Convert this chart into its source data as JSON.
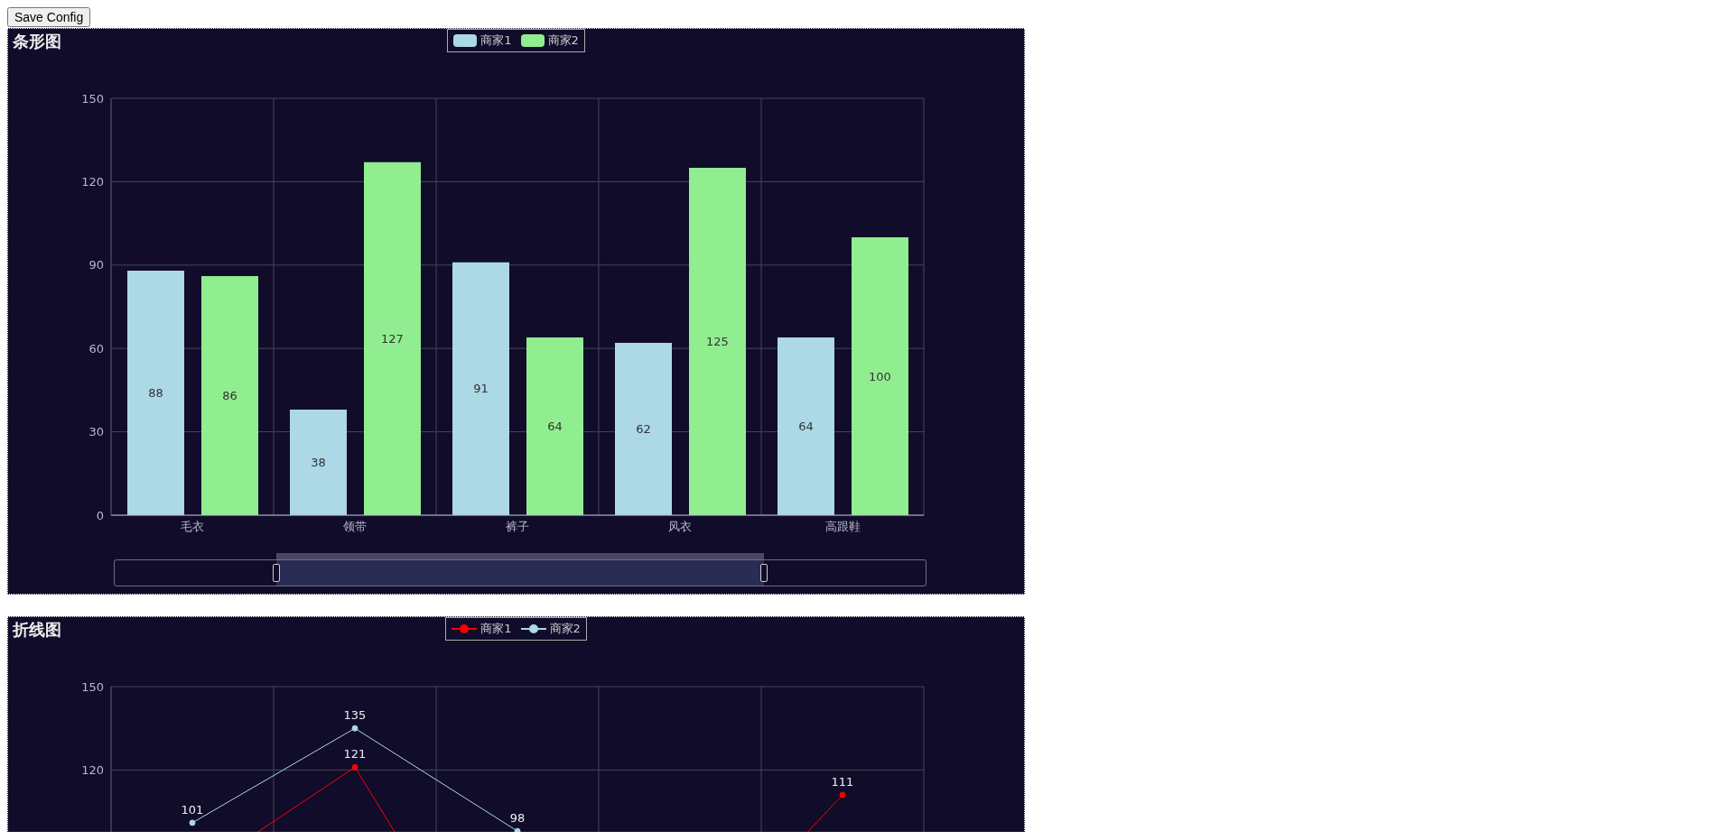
{
  "chart_data": [
    {
      "type": "bar",
      "title": "条形图",
      "annotations": [
        "Save Config"
      ],
      "categories": [
        "毛衣",
        "领带",
        "裤子",
        "风衣",
        "高跟鞋"
      ],
      "series": [
        {
          "name": "商家1",
          "color": "#add8e6",
          "values": [
            88,
            38,
            91,
            62,
            64
          ]
        },
        {
          "name": "商家2",
          "color": "#90ee90",
          "values": [
            86,
            127,
            64,
            125,
            100
          ]
        }
      ],
      "ylim": [
        0,
        150
      ],
      "yticks": [
        0,
        30,
        60,
        90,
        120,
        150
      ],
      "grid": true,
      "legend": "top",
      "data_labels": true
    },
    {
      "type": "line",
      "title": "折线图",
      "categories": [
        null,
        null,
        null,
        null,
        null
      ],
      "series": [
        {
          "name": "商家1",
          "color": "#ff0000",
          "values": [
            82,
            121,
            26,
            49,
            111
          ],
          "value_labels": [
            null,
            "121",
            null,
            null,
            "111"
          ]
        },
        {
          "name": "商家2",
          "color": "#add8e6",
          "values": [
            101,
            135,
            98,
            null,
            null
          ],
          "value_labels": [
            "101",
            "135",
            "98",
            null,
            null
          ]
        }
      ],
      "ylim": [
        0,
        150
      ],
      "yticks": [
        120,
        150
      ],
      "grid": true,
      "legend": "top",
      "marker": "circle"
    }
  ]
}
